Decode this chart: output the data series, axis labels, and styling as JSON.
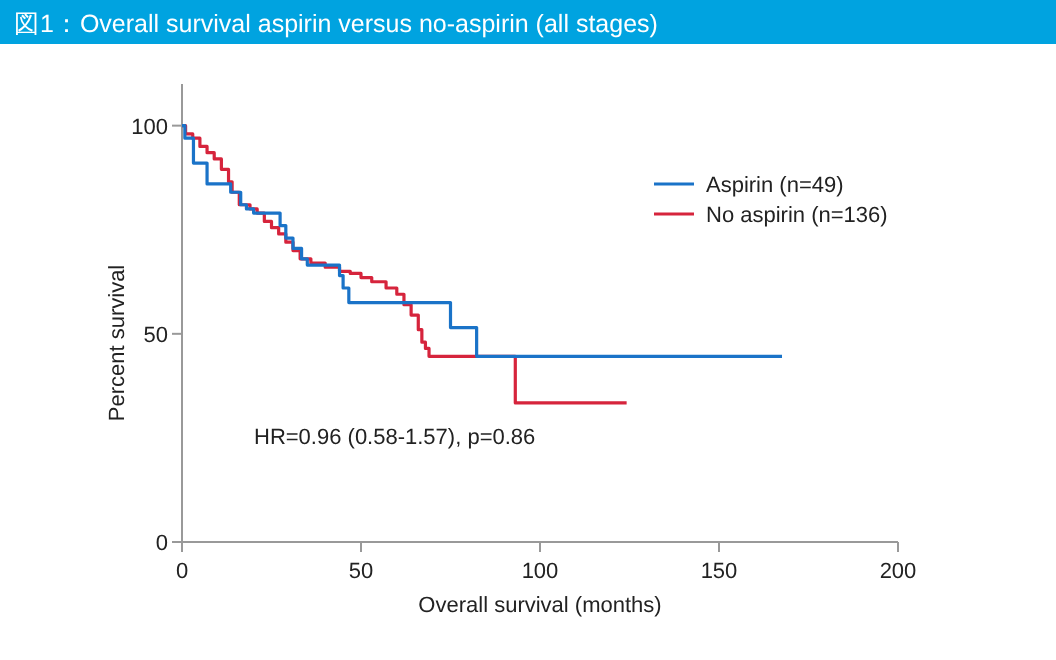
{
  "chart_data": {
    "type": "step",
    "title": "図1：Overall survival aspirin versus no-aspirin (all stages)",
    "xlabel": "Overall survival (months)",
    "ylabel": "Percent survival",
    "annotations": [
      "HR=0.96 (0.58-1.57), p=0.86"
    ],
    "xlim": [
      0,
      200
    ],
    "xticks": [
      0,
      50,
      100,
      150,
      200
    ],
    "ylim": [
      0,
      110
    ],
    "yticks": [
      0,
      50,
      100
    ],
    "grid": false,
    "legend": "top right",
    "line_style": "solid",
    "series": [
      {
        "name": "Aspirin (n=49)",
        "color": "#1a73c8",
        "x": [
          0,
          0.8,
          3.2,
          7,
          13.6,
          16.4,
          18,
          20,
          27.4,
          29,
          31,
          33.4,
          35,
          44,
          45,
          46.6,
          75,
          82.3,
          167.6
        ],
        "values": [
          100,
          97,
          91,
          86,
          84,
          81,
          80,
          79,
          76,
          73,
          70.5,
          68,
          66.5,
          64,
          61,
          57.5,
          51.5,
          44.6,
          44.6
        ]
      },
      {
        "name": "No aspirin (n=136)",
        "color": "#d6243c",
        "x": [
          0,
          1,
          3,
          5,
          7,
          9,
          11,
          13,
          14,
          16,
          19,
          21,
          23,
          25,
          27,
          29,
          31,
          33,
          36,
          40,
          44,
          47,
          50,
          53,
          57,
          60,
          62,
          64,
          66,
          67,
          68,
          69,
          93.1,
          124.2
        ],
        "values": [
          100,
          98,
          97,
          95,
          93.5,
          92,
          89.5,
          86.5,
          84,
          81,
          80,
          79,
          77,
          75.5,
          74,
          72,
          70,
          68,
          67,
          66,
          65,
          64.5,
          63.5,
          62.5,
          61,
          59.5,
          57,
          54.5,
          51,
          48,
          46.5,
          44.6,
          33.4,
          33.4
        ]
      }
    ]
  }
}
